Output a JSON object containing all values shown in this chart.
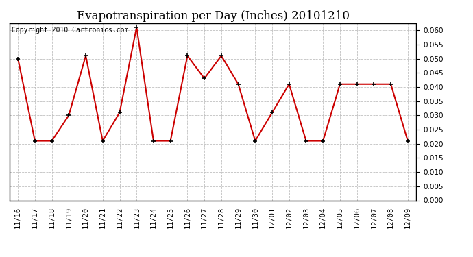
{
  "title": "Evapotranspiration per Day (Inches) 20101210",
  "copyright_text": "Copyright 2010 Cartronics.com",
  "labels": [
    "11/16",
    "11/17",
    "11/18",
    "11/19",
    "11/20",
    "11/21",
    "11/22",
    "11/23",
    "11/24",
    "11/25",
    "11/26",
    "11/27",
    "11/28",
    "11/29",
    "11/30",
    "12/01",
    "12/02",
    "12/03",
    "12/04",
    "12/05",
    "12/06",
    "12/07",
    "12/08",
    "12/09"
  ],
  "values": [
    0.05,
    0.021,
    0.021,
    0.03,
    0.051,
    0.021,
    0.031,
    0.061,
    0.021,
    0.021,
    0.051,
    0.043,
    0.051,
    0.041,
    0.021,
    0.031,
    0.041,
    0.021,
    0.021,
    0.041,
    0.041,
    0.041,
    0.041,
    0.021
  ],
  "line_color": "#cc0000",
  "marker_color": "#000000",
  "background_color": "#ffffff",
  "grid_color": "#c0c0c0",
  "ylim": [
    0.0,
    0.0625
  ],
  "yticks": [
    0.0,
    0.005,
    0.01,
    0.015,
    0.02,
    0.025,
    0.03,
    0.035,
    0.04,
    0.045,
    0.05,
    0.055,
    0.06
  ],
  "title_fontsize": 12,
  "copyright_fontsize": 7,
  "tick_fontsize": 7.5
}
